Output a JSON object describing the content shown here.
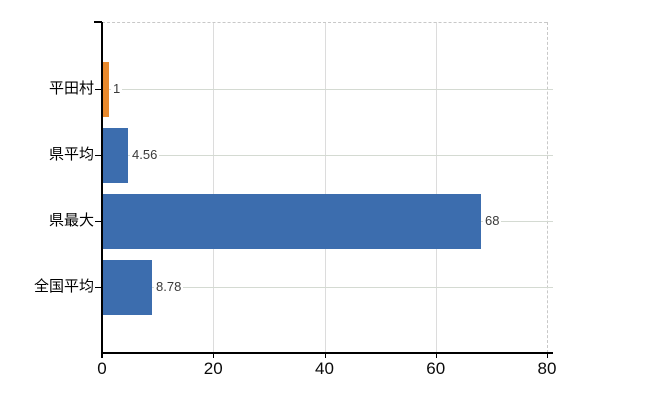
{
  "chart_data": {
    "type": "bar",
    "orientation": "horizontal",
    "title": "",
    "categories": [
      "平田村",
      "県平均",
      "県最大",
      "全国平均"
    ],
    "values": [
      1,
      4.56,
      68,
      8.78
    ],
    "value_labels": [
      "1",
      "4.56",
      "68",
      "8.78"
    ],
    "bar_colors": [
      "#e8892d",
      "#3c6dae",
      "#3c6dae",
      "#3c6dae"
    ],
    "x_ticks": [
      "0",
      "20",
      "40",
      "60",
      "80"
    ],
    "x_tick_values": [
      0,
      20,
      40,
      60,
      80
    ],
    "xlim": [
      0,
      80
    ],
    "grid": true,
    "legend": "none"
  },
  "colors": {
    "background": "#ffffff",
    "bar_blue": "#3c6dae",
    "bar_orange": "#e8892d",
    "axis": "#000000",
    "gridline_vertical": "#dcdcdc",
    "gridline_horizontal": "#d4dad2",
    "plot_border_dashed": "#c8c8c8",
    "value_label_text": "#3a3a3a",
    "tick_label_text": "#0a0a0a"
  }
}
